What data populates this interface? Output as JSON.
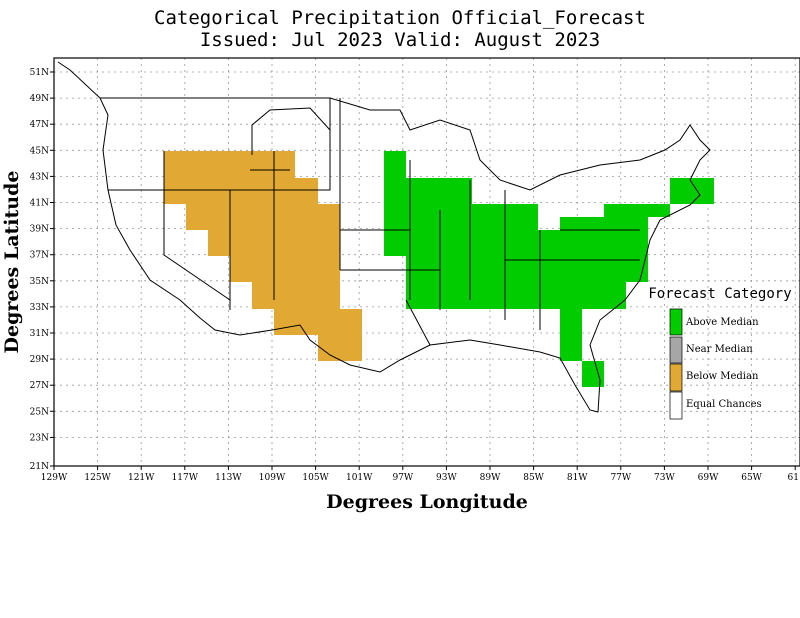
{
  "title_line1": "Categorical Precipitation Official_Forecast",
  "title_line2": "Issued: Jul 2023 Valid: August 2023",
  "xlabel": "Degrees Longitude",
  "ylabel": "Degrees Latitude",
  "lat_ticks": [
    "51N",
    "49N",
    "47N",
    "45N",
    "43N",
    "41N",
    "39N",
    "37N",
    "35N",
    "33N",
    "31N",
    "29N",
    "27N",
    "25N",
    "23N",
    "21N"
  ],
  "lon_ticks": [
    "129W",
    "125W",
    "121W",
    "117W",
    "113W",
    "109W",
    "105W",
    "101W",
    "97W",
    "93W",
    "89W",
    "85W",
    "81W",
    "77W",
    "73W",
    "69W",
    "65W",
    "61"
  ],
  "legend": {
    "title": "Forecast Category",
    "items": [
      {
        "label": "Above Median",
        "color": "#00cc00"
      },
      {
        "label": "Near Median",
        "color": "#a6a6a6"
      },
      {
        "label": "Below Median",
        "color": "#e1a933"
      },
      {
        "label": "Equal Chances",
        "color": "#ffffff"
      }
    ]
  },
  "colors": {
    "above": "#00cc00",
    "below": "#e1a933",
    "grid": "#9a9a9a"
  }
}
